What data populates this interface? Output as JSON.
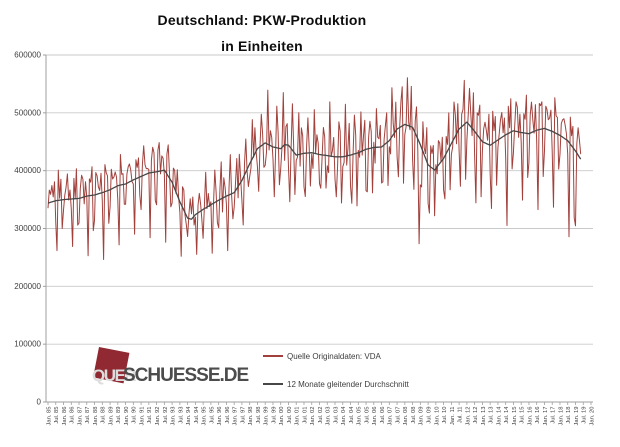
{
  "title": {
    "line1": "Deutschland: PKW-Produktion",
    "line2": "in Einheiten"
  },
  "watermark": {
    "part1": "QUER",
    "part2": "SCHUESSE.DE",
    "square_color": "#902932",
    "part1_color": "#dcdcdc",
    "part2_color": "#4c4c4c"
  },
  "colors": {
    "background": "#ffffff",
    "gridline": "#c9c9c9",
    "axis": "#9f9f9f",
    "tick_text": "#404040",
    "title_text": "#0d0d0d",
    "series_red": "#a2413c",
    "series_avg": "#474747"
  },
  "chart_data": {
    "type": "line",
    "title": "Deutschland: PKW-Produktion in Einheiten",
    "xlabel": "",
    "ylabel": "",
    "grid": "horizontal",
    "legend_position": "inside-bottom-center",
    "x_axis": {
      "start": "Jan 1985",
      "end": "Jan 2020",
      "tick_interval": "6 months",
      "tick_labels": [
        "Jan. 85",
        "Jul. 85",
        "Jan. 86",
        "Jul. 86",
        "Jan. 87",
        "Jul. 87",
        "Jan. 88",
        "Jul. 88",
        "Jan. 89",
        "Jul. 89",
        "Jan. 90",
        "Jul. 90",
        "Jan. 91",
        "Jul. 91",
        "Jan. 92",
        "Jul. 92",
        "Jan. 93",
        "Jul. 93",
        "Jan. 94",
        "Jul. 94",
        "Jan. 95",
        "Jul. 95",
        "Jan. 96",
        "Jul. 96",
        "Jan. 97",
        "Jul. 97",
        "Jan. 98",
        "Jul. 98",
        "Jan. 99",
        "Jul. 99",
        "Jan. 00",
        "Jul. 00",
        "Jan. 01",
        "Jul. 01",
        "Jan. 02",
        "Jul. 02",
        "Jan. 03",
        "Jul. 03",
        "Jan. 04",
        "Jul. 04",
        "Jan. 05",
        "Jul. 05",
        "Jan. 06",
        "Jul. 06",
        "Jan. 07",
        "Jul. 07",
        "Jan. 08",
        "Jul. 08",
        "Jan. 09",
        "Jul. 09",
        "Jan. 10",
        "Jul. 10",
        "Jan. 11",
        "Jul. 11",
        "Jan. 12",
        "Jul. 12",
        "Jan. 13",
        "Jul. 13",
        "Jan. 14",
        "Jul. 14",
        "Jan. 15",
        "Jul. 15",
        "Jan. 16",
        "Jul. 16",
        "Jan. 17",
        "Jul. 17",
        "Jan. 18",
        "Jul. 18",
        "Jan. 19",
        "Jul. 19",
        "Jan. 20"
      ]
    },
    "y_axis": {
      "min": 0,
      "max": 600000,
      "tick_step": 100000,
      "tick_labels": [
        "0",
        "100000",
        "200000",
        "300000",
        "400000",
        "500000",
        "600000"
      ]
    },
    "series": [
      {
        "name": "Quelle Originaldaten: VDA",
        "color": "#a2413c",
        "kind": "monthly-original",
        "months_start": "1985-01",
        "months_end": "2019-05",
        "last_month_index": 412,
        "pattern": {
          "seasonal_pct_by_month": [
            -0.06,
            0.01,
            0.14,
            0.02,
            0.04,
            0.07,
            -0.08,
            -0.22,
            0.05,
            0.1,
            0.08,
            -0.15
          ],
          "noise": {
            "a1": 24000,
            "f1": 2.6,
            "a2": 14000,
            "f2": 1.7,
            "p2": 1.0
          },
          "events": [
            {
              "from": 286,
              "to": 289,
              "pct": -0.16,
              "note": "2008-11..2009-02 crisis"
            },
            {
              "from": 355,
              "to": 355,
              "pct": -0.12,
              "note": "2014-08 deep dip"
            },
            {
              "from": 403,
              "to": 403,
              "pct": -0.12,
              "note": "2018-08 WLTP dip"
            },
            {
              "from": 407,
              "to": 408,
              "pct": -0.18,
              "note": "2018-12..2019-01 dip"
            }
          ],
          "clamp_min": 185000,
          "clamp_max": 592000
        }
      },
      {
        "name": "12 Monate gleitender Durchschnitt",
        "color": "#474747",
        "kind": "moving-average",
        "anchors": [
          [
            0,
            344000
          ],
          [
            6,
            348000
          ],
          [
            12,
            350000
          ],
          [
            18,
            351000
          ],
          [
            24,
            352000
          ],
          [
            30,
            356000
          ],
          [
            36,
            358000
          ],
          [
            42,
            362000
          ],
          [
            48,
            367000
          ],
          [
            54,
            374000
          ],
          [
            60,
            377000
          ],
          [
            66,
            384000
          ],
          [
            72,
            390000
          ],
          [
            78,
            396000
          ],
          [
            84,
            398000
          ],
          [
            90,
            401000
          ],
          [
            96,
            380000
          ],
          [
            102,
            346000
          ],
          [
            108,
            318000
          ],
          [
            111,
            316000
          ],
          [
            114,
            324000
          ],
          [
            120,
            333000
          ],
          [
            126,
            341000
          ],
          [
            132,
            349000
          ],
          [
            138,
            356000
          ],
          [
            144,
            362000
          ],
          [
            150,
            383000
          ],
          [
            156,
            412000
          ],
          [
            162,
            438000
          ],
          [
            168,
            448000
          ],
          [
            174,
            441000
          ],
          [
            180,
            438000
          ],
          [
            183,
            445000
          ],
          [
            186,
            444000
          ],
          [
            192,
            427000
          ],
          [
            198,
            430000
          ],
          [
            204,
            431000
          ],
          [
            210,
            428000
          ],
          [
            216,
            426000
          ],
          [
            222,
            424000
          ],
          [
            228,
            424000
          ],
          [
            234,
            427000
          ],
          [
            240,
            431000
          ],
          [
            246,
            437000
          ],
          [
            252,
            440000
          ],
          [
            258,
            441000
          ],
          [
            264,
            452000
          ],
          [
            270,
            472000
          ],
          [
            276,
            480000
          ],
          [
            282,
            475000
          ],
          [
            288,
            445000
          ],
          [
            294,
            410000
          ],
          [
            299,
            401000
          ],
          [
            306,
            421000
          ],
          [
            312,
            447000
          ],
          [
            318,
            472000
          ],
          [
            324,
            484000
          ],
          [
            330,
            468000
          ],
          [
            336,
            450000
          ],
          [
            342,
            444000
          ],
          [
            348,
            453000
          ],
          [
            354,
            462000
          ],
          [
            360,
            469000
          ],
          [
            366,
            466000
          ],
          [
            372,
            464000
          ],
          [
            378,
            470000
          ],
          [
            384,
            473000
          ],
          [
            390,
            468000
          ],
          [
            396,
            461000
          ],
          [
            402,
            452000
          ],
          [
            408,
            434000
          ],
          [
            412,
            420000
          ]
        ]
      }
    ]
  }
}
